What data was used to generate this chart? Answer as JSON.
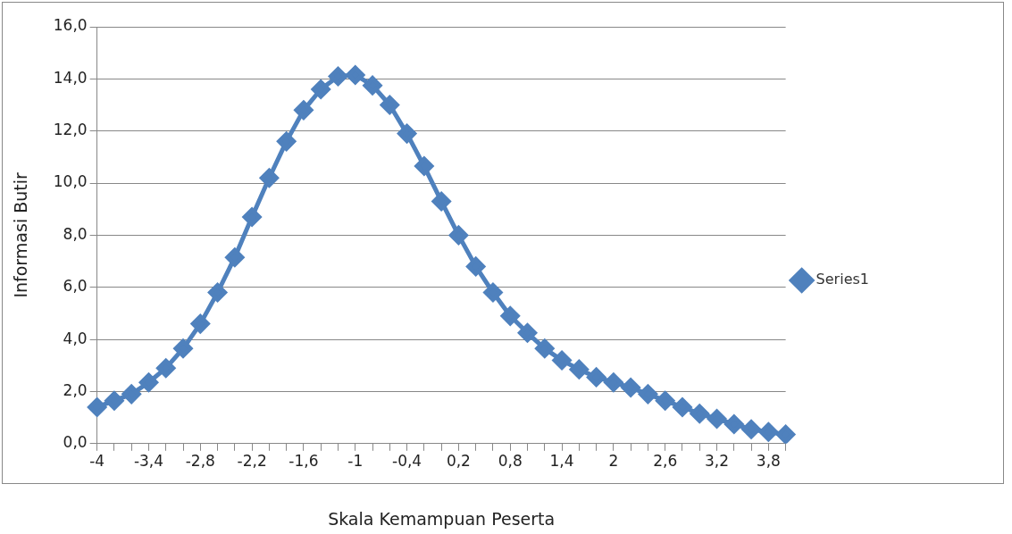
{
  "chart_data": {
    "type": "line",
    "xlabel": "Skala Kemampuan Peserta",
    "ylabel": "Informasi Butir",
    "categories": [
      "-4",
      null,
      null,
      "-3,4",
      null,
      null,
      "-2,8",
      null,
      null,
      "-2,2",
      null,
      null,
      "-1,6",
      null,
      null,
      "-1",
      null,
      null,
      "-0,4",
      null,
      null,
      "0,2",
      null,
      null,
      "0,8",
      null,
      null,
      "1,4",
      null,
      null,
      "2",
      null,
      null,
      "2,6",
      null,
      null,
      "3,2",
      null,
      null,
      "3,8",
      null
    ],
    "series": [
      {
        "name": "Series1",
        "color": "#4f81bd",
        "values": [
          1.4,
          1.65,
          1.9,
          2.35,
          2.9,
          3.65,
          4.6,
          5.8,
          7.15,
          8.7,
          10.2,
          11.6,
          12.8,
          13.6,
          14.1,
          14.15,
          13.75,
          13.0,
          11.9,
          10.65,
          9.3,
          8.0,
          6.8,
          5.8,
          4.9,
          4.25,
          3.65,
          3.2,
          2.85,
          2.55,
          2.35,
          2.15,
          1.9,
          1.65,
          1.4,
          1.15,
          0.95,
          0.75,
          0.55,
          0.45,
          0.35
        ]
      }
    ],
    "ylim": [
      0,
      16
    ],
    "yticks": [
      {
        "value": 0,
        "label": "0,0"
      },
      {
        "value": 2,
        "label": "2,0"
      },
      {
        "value": 4,
        "label": "4,0"
      },
      {
        "value": 6,
        "label": "6,0"
      },
      {
        "value": 8,
        "label": "8,0"
      },
      {
        "value": 10,
        "label": "10,0"
      },
      {
        "value": 12,
        "label": "12,0"
      },
      {
        "value": 14,
        "label": "14,0"
      },
      {
        "value": 16,
        "label": "16,0"
      }
    ],
    "grid": "y",
    "legend": "right",
    "marker": "diamond",
    "line_style": "solid"
  }
}
